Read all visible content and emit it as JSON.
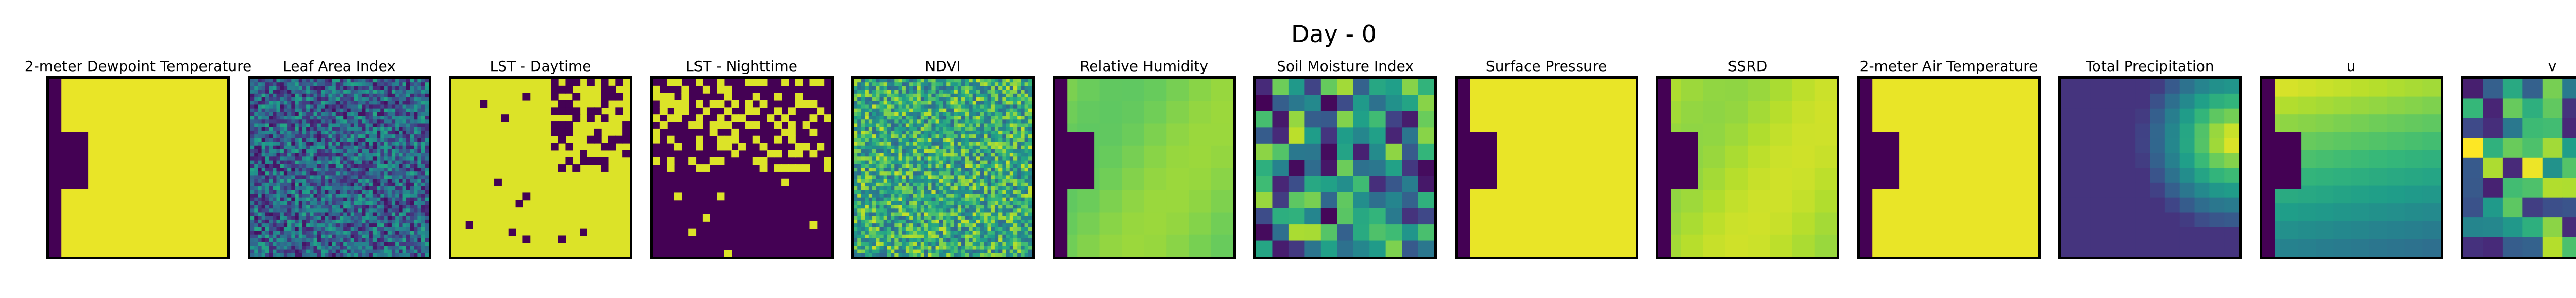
{
  "figure": {
    "title": "Day - 0"
  },
  "chart_data": {
    "type": "heatmap",
    "title": "Day - 0",
    "colormap": "viridis",
    "axes_ticks": "none",
    "panels": [
      {
        "title": "2-meter Dewpoint Temperature",
        "pattern": "mask",
        "base": 0.97,
        "notch": "left"
      },
      {
        "title": "Leaf Area Index",
        "pattern": "noise",
        "base": 0.32,
        "spread": 0.28,
        "cells": 48
      },
      {
        "title": "LST - Daytime",
        "pattern": "patches_dark",
        "base": 0.95
      },
      {
        "title": "LST - Nighttime",
        "pattern": "patches_light",
        "base": 0.0
      },
      {
        "title": "NDVI",
        "pattern": "noise",
        "base": 0.62,
        "spread": 0.3,
        "cells": 48
      },
      {
        "title": "Relative Humidity",
        "pattern": "smooth",
        "base": 0.8,
        "notch": "left"
      },
      {
        "title": "Soil Moisture Index",
        "pattern": "blocks",
        "base": 0.45,
        "spread": 0.45,
        "cells": 11
      },
      {
        "title": "Surface Pressure",
        "pattern": "mask",
        "base": 0.97,
        "notch": "left"
      },
      {
        "title": "SSRD",
        "pattern": "smooth",
        "base": 0.88,
        "notch": "left"
      },
      {
        "title": "2-meter Air Temperature",
        "pattern": "mask",
        "base": 0.97,
        "notch": "left"
      },
      {
        "title": "Total Precipitation",
        "pattern": "gradient_right",
        "base": 0.15
      },
      {
        "title": "u",
        "pattern": "gradient_diag",
        "base": 0.6,
        "notch": "left"
      },
      {
        "title": "v",
        "pattern": "blocks",
        "base": 0.55,
        "spread": 0.5,
        "cells": 9
      }
    ]
  }
}
